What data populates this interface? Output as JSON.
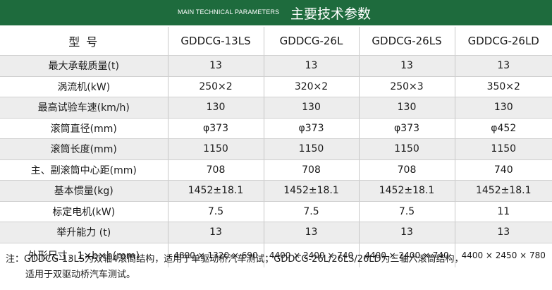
{
  "banner": {
    "title_en": "MAIN TECHNICAL PARAMETERS",
    "title_cn": "主要技术参数",
    "bg_color": "#1e6b3d"
  },
  "table": {
    "header": {
      "label": "型    号",
      "models": [
        "GDDCG-13LS",
        "GDDCG-26L",
        "GDDCG-26LS",
        "GDDCG-26LD"
      ]
    },
    "rows": [
      {
        "label": "最大承载质量(t)",
        "values": [
          "13",
          "13",
          "13",
          "13"
        ]
      },
      {
        "label": "涡流机(kW)",
        "values": [
          "250×2",
          "320×2",
          "250×3",
          "350×2"
        ]
      },
      {
        "label": "最高试验车速(km/h)",
        "values": [
          "130",
          "130",
          "130",
          "130"
        ]
      },
      {
        "label": "滚筒直径(mm)",
        "values": [
          "φ373",
          "φ373",
          "φ373",
          "φ452"
        ]
      },
      {
        "label": "滚筒长度(mm)",
        "values": [
          "1150",
          "1150",
          "1150",
          "1150"
        ]
      },
      {
        "label": "主、副滚筒中心距(mm)",
        "values": [
          "708",
          "708",
          "708",
          "740"
        ]
      },
      {
        "label": "基本惯量(kg)",
        "values": [
          "1452±18.1",
          "1452±18.1",
          "1452±18.1",
          "1452±18.1"
        ]
      },
      {
        "label": "标定电机(kW)",
        "values": [
          "7.5",
          "7.5",
          "7.5",
          "11"
        ]
      },
      {
        "label": "举升能力 (t)",
        "values": [
          "13",
          "13",
          "13",
          "13"
        ]
      },
      {
        "label": "外形尺寸，1×b×h(mm)",
        "values": [
          "4800 × 1320 × 690",
          "4400 × 2400 × 740",
          "4400 × 2400 × 740",
          "4400 × 2450 × 780"
        ]
      }
    ]
  },
  "note": {
    "line1": "注：GDDCG-13LS为双轴4滚筒结构，适用于单驱动桥汽车测试；GDDCG-26L/26LS/26LD为三轴六滚筒结构，",
    "line2": "适用于双驱动桥汽车测试。"
  }
}
